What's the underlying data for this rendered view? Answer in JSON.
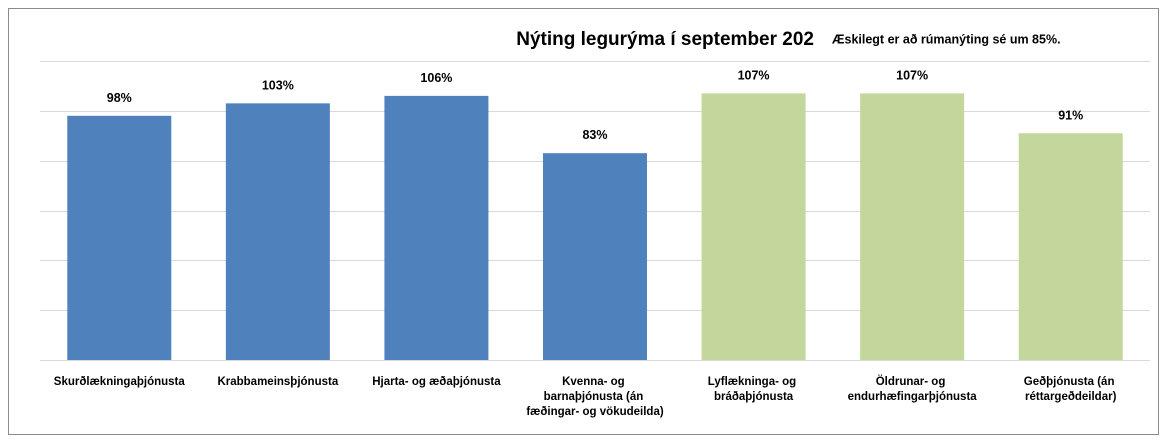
{
  "chart_data": {
    "type": "bar",
    "title": "Nýting legurýma í september 202",
    "subtitle": "Æskilegt er að rúmanýting sé um 85%.",
    "categories": [
      "Skurðlækningaþjónusta",
      "Krabbameinsþjónusta",
      "Hjarta- og æðaþjónusta",
      "Kvenna- og barnaþjónusta (án fæðingar- og vökudeilda)",
      "Lyflækninga- og bráðaþjónusta",
      "Öldrunar- og endurhæfingarþjónusta",
      "Geðþjónusta (án réttargeðdeildar)"
    ],
    "values": [
      98,
      103,
      106,
      83,
      107,
      107,
      91
    ],
    "value_labels": [
      "98%",
      "103%",
      "106%",
      "83%",
      "107%",
      "107%",
      "91%"
    ],
    "colors": [
      "#4f81bd",
      "#4f81bd",
      "#4f81bd",
      "#4f81bd",
      "#c3d69b",
      "#c3d69b",
      "#c3d69b"
    ],
    "ylim": [
      0,
      120
    ],
    "yticks": [
      0,
      20,
      40,
      60,
      80,
      100,
      120
    ],
    "grid": true
  }
}
